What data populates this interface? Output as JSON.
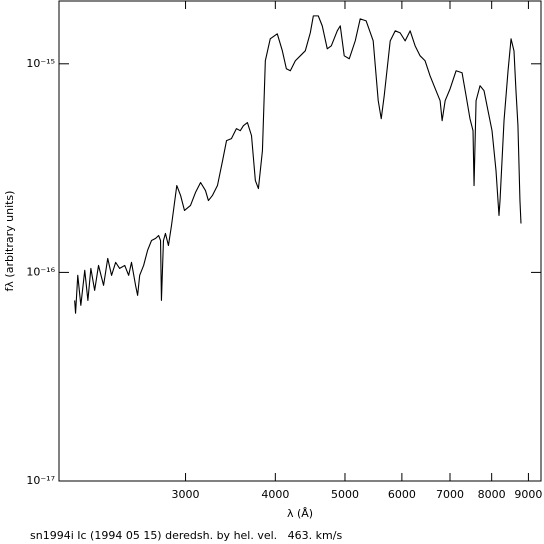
{
  "chart_data": {
    "type": "line",
    "x_label": "λ (Å)",
    "y_label": "fλ (arbitrary units)",
    "caption": "sn1994i Ic (1994 05 15) deredsh. by hel. vel.   463. km/s",
    "xlog": true,
    "ylog": true,
    "grid": false,
    "xlim": [
      2000,
      9370
    ],
    "ylim": [
      1e-17,
      2e-15
    ],
    "xticks": [
      3000,
      4000,
      5000,
      6000,
      7000,
      8000,
      9000
    ],
    "yticks": [
      {
        "value": 1e-17,
        "label": "10⁻¹⁷"
      },
      {
        "value": 1e-16,
        "label": "10⁻¹⁶"
      },
      {
        "value": 1e-15,
        "label": "10⁻¹⁵"
      }
    ],
    "x": [
      2103,
      2109,
      2124,
      2145,
      2172,
      2194,
      2215,
      2242,
      2270,
      2307,
      2338,
      2367,
      2398,
      2429,
      2469,
      2500,
      2523,
      2556,
      2573,
      2590,
      2623,
      2656,
      2690,
      2726,
      2752,
      2769,
      2777,
      2795,
      2813,
      2840,
      2868,
      2917,
      2953,
      2990,
      3048,
      3097,
      3148,
      3198,
      3228,
      3269,
      3323,
      3378,
      3421,
      3475,
      3531,
      3575,
      3611,
      3658,
      3706,
      3752,
      3789,
      3838,
      3874,
      3935,
      4025,
      4091,
      4144,
      4197,
      4265,
      4333,
      4403,
      4474,
      4518,
      4590,
      4649,
      4724,
      4786,
      4878,
      4925,
      4988,
      5069,
      5167,
      5250,
      5351,
      5473,
      5562,
      5616,
      5670,
      5780,
      5873,
      5967,
      6063,
      6161,
      6260,
      6361,
      6463,
      6567,
      6694,
      6782,
      6826,
      6892,
      7003,
      7138,
      7276,
      7370,
      7463,
      7536,
      7561,
      7610,
      7707,
      7807,
      7907,
      8009,
      8112,
      8190,
      8217,
      8323,
      8431,
      8513,
      8593,
      8648,
      8703,
      8759,
      8788
    ],
    "series": [
      {
        "color": "#000000",
        "values": [
          7.34e-17,
          6.37e-17,
          9.68e-17,
          6.95e-17,
          1.023e-16,
          7.34e-17,
          1.045e-16,
          8.2e-17,
          1.08e-16,
          8.67e-17,
          1.167e-16,
          9.68e-17,
          1.117e-16,
          1.045e-16,
          1.08e-16,
          9.68e-17,
          1.117e-16,
          8.67e-17,
          7.76e-17,
          9.68e-17,
          1.08e-16,
          1.274e-16,
          1.422e-16,
          1.455e-16,
          1.503e-16,
          1.422e-16,
          7.34e-17,
          1.422e-16,
          1.537e-16,
          1.346e-16,
          1.679e-16,
          2.608e-16,
          2.335e-16,
          1.981e-16,
          2.093e-16,
          2.415e-16,
          2.697e-16,
          2.467e-16,
          2.21e-16,
          2.335e-16,
          2.608e-16,
          3.434e-16,
          4.283e-16,
          4.378e-16,
          4.888e-16,
          4.779e-16,
          5.049e-16,
          5.224e-16,
          4.525e-16,
          2.755e-16,
          2.523e-16,
          3.834e-16,
          1.034e-15,
          1.317e-15,
          1.392e-15,
          1.154e-15,
          9.464e-16,
          9.259e-16,
          1.034e-15,
          1.092e-15,
          1.154e-15,
          1.407e-15,
          1.697e-15,
          1.697e-15,
          1.52e-15,
          1.18e-15,
          1.219e-15,
          1.439e-15,
          1.52e-15,
          1.092e-15,
          1.057e-15,
          1.288e-15,
          1.642e-15,
          1.606e-15,
          1.288e-15,
          6.653e-16,
          5.455e-16,
          7.031e-16,
          1.288e-15,
          1.439e-15,
          1.407e-15,
          1.288e-15,
          1.439e-15,
          1.219e-15,
          1.092e-15,
          1.034e-15,
          8.762e-16,
          7.43e-16,
          6.653e-16,
          5.334e-16,
          6.653e-16,
          7.594e-16,
          9.259e-16,
          9.057e-16,
          7.031e-16,
          5.455e-16,
          4.779e-16,
          2.608e-16,
          6.653e-16,
          7.85e-16,
          7.43e-16,
          5.957e-16,
          4.779e-16,
          3.077e-16,
          1.874e-16,
          2.21e-16,
          5.334e-16,
          9.259e-16,
          1.317e-15,
          1.154e-15,
          7.43e-16,
          5.049e-16,
          2.21e-16,
          1.715e-16
        ]
      }
    ]
  }
}
